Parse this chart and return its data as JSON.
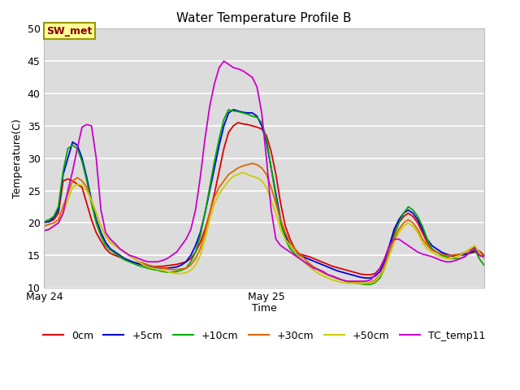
{
  "title": "Water Temperature Profile B",
  "xlabel": "Time",
  "ylabel": "Temperature(C)",
  "ylim": [
    10,
    50
  ],
  "yticks": [
    10,
    15,
    20,
    25,
    30,
    35,
    40,
    45,
    50
  ],
  "xtick_labels": [
    "May 24",
    "May 25"
  ],
  "background_color": "#dcdcdc",
  "annotation_text": "SW_met",
  "sw_met_box_color": "#ffff99",
  "sw_met_text_color": "#880000",
  "sw_met_border_color": "#999900",
  "series_order": [
    "0cm",
    "+5cm",
    "+10cm",
    "+30cm",
    "+50cm",
    "TC_temp11"
  ],
  "series": {
    "0cm": {
      "color": "#dd0000",
      "linewidth": 1.3,
      "values": [
        20.1,
        20.2,
        20.5,
        21.5,
        26.5,
        26.8,
        26.5,
        26.0,
        25.5,
        23.0,
        20.5,
        18.5,
        17.2,
        16.0,
        15.3,
        15.0,
        14.7,
        14.4,
        14.1,
        13.9,
        13.7,
        13.5,
        13.4,
        13.3,
        13.3,
        13.3,
        13.4,
        13.5,
        13.6,
        13.8,
        14.0,
        14.5,
        15.5,
        17.0,
        19.0,
        21.5,
        24.5,
        28.0,
        31.5,
        34.0,
        35.0,
        35.5,
        35.3,
        35.2,
        35.0,
        34.8,
        34.5,
        33.5,
        31.0,
        27.5,
        23.0,
        19.5,
        17.5,
        16.0,
        15.2,
        15.0,
        14.8,
        14.5,
        14.2,
        13.9,
        13.6,
        13.3,
        13.1,
        12.9,
        12.7,
        12.5,
        12.3,
        12.1,
        12.0,
        12.0,
        12.2,
        13.0,
        14.5,
        16.5,
        18.5,
        20.0,
        21.0,
        21.5,
        21.0,
        20.0,
        18.5,
        17.0,
        16.0,
        15.5,
        15.2,
        15.0,
        14.9,
        14.9,
        15.0,
        15.1,
        15.3,
        15.5,
        15.7,
        15.0
      ]
    },
    "+5cm": {
      "color": "#0000dd",
      "linewidth": 1.3,
      "values": [
        20.1,
        20.2,
        20.8,
        22.0,
        27.5,
        30.0,
        32.5,
        32.0,
        30.0,
        27.0,
        23.5,
        20.5,
        18.5,
        17.0,
        16.0,
        15.5,
        15.0,
        14.5,
        14.2,
        13.9,
        13.7,
        13.5,
        13.3,
        13.2,
        13.1,
        13.0,
        13.0,
        13.1,
        13.2,
        13.5,
        14.0,
        15.0,
        16.5,
        18.5,
        21.5,
        25.0,
        28.5,
        32.0,
        35.0,
        37.0,
        37.5,
        37.3,
        37.1,
        37.0,
        37.0,
        36.5,
        35.0,
        32.5,
        28.5,
        24.5,
        20.5,
        18.0,
        16.5,
        15.5,
        15.0,
        14.7,
        14.4,
        14.1,
        13.8,
        13.5,
        13.2,
        12.9,
        12.6,
        12.4,
        12.2,
        12.0,
        11.8,
        11.6,
        11.5,
        11.5,
        11.8,
        12.5,
        14.0,
        16.5,
        19.0,
        20.5,
        21.5,
        22.0,
        21.5,
        20.5,
        19.0,
        17.5,
        16.5,
        16.0,
        15.5,
        15.2,
        15.0,
        15.0,
        15.1,
        15.2,
        15.4,
        15.7,
        15.0,
        14.8
      ]
    },
    "+10cm": {
      "color": "#00aa00",
      "linewidth": 1.3,
      "values": [
        20.2,
        20.5,
        21.0,
        22.5,
        28.0,
        31.5,
        32.0,
        31.5,
        29.5,
        26.5,
        23.0,
        20.0,
        18.0,
        16.5,
        15.8,
        15.3,
        14.8,
        14.3,
        14.0,
        13.7,
        13.4,
        13.2,
        13.0,
        12.8,
        12.7,
        12.5,
        12.4,
        12.4,
        12.5,
        12.7,
        13.0,
        14.0,
        15.5,
        18.0,
        21.5,
        25.5,
        29.5,
        33.0,
        36.0,
        37.5,
        37.3,
        37.2,
        37.0,
        36.8,
        36.5,
        36.3,
        35.5,
        33.0,
        28.5,
        24.0,
        20.0,
        17.5,
        16.0,
        15.2,
        14.6,
        14.0,
        13.6,
        13.2,
        12.8,
        12.4,
        12.0,
        11.7,
        11.4,
        11.2,
        11.0,
        10.8,
        10.7,
        10.6,
        10.5,
        10.5,
        10.8,
        11.5,
        13.0,
        15.5,
        18.0,
        20.0,
        21.5,
        22.5,
        22.0,
        21.0,
        19.5,
        17.5,
        16.0,
        15.5,
        15.0,
        14.8,
        14.5,
        14.5,
        14.5,
        14.8,
        15.5,
        16.0,
        14.5,
        13.5
      ]
    },
    "+30cm": {
      "color": "#dd6600",
      "linewidth": 1.3,
      "values": [
        19.5,
        19.8,
        20.0,
        20.5,
        22.5,
        24.5,
        26.5,
        27.0,
        26.5,
        25.5,
        23.5,
        21.5,
        19.5,
        18.0,
        17.0,
        16.5,
        16.0,
        15.5,
        15.0,
        14.5,
        14.0,
        13.8,
        13.5,
        13.3,
        13.2,
        13.0,
        12.9,
        12.8,
        12.8,
        12.9,
        13.0,
        13.5,
        14.5,
        16.0,
        18.5,
        21.5,
        24.0,
        25.5,
        26.5,
        27.5,
        28.0,
        28.5,
        28.8,
        29.0,
        29.2,
        29.0,
        28.5,
        27.5,
        25.5,
        23.0,
        20.5,
        18.5,
        17.0,
        16.0,
        15.2,
        14.5,
        13.8,
        13.2,
        12.7,
        12.3,
        12.0,
        11.7,
        11.4,
        11.2,
        11.0,
        10.9,
        10.8,
        10.7,
        10.7,
        10.8,
        11.2,
        12.0,
        13.5,
        15.5,
        17.5,
        19.0,
        20.0,
        20.5,
        20.0,
        19.0,
        17.5,
        16.5,
        15.8,
        15.5,
        15.2,
        15.0,
        15.0,
        15.1,
        15.2,
        15.5,
        15.8,
        16.2,
        15.5,
        14.5
      ]
    },
    "+50cm": {
      "color": "#cccc00",
      "linewidth": 1.3,
      "values": [
        18.8,
        19.0,
        19.5,
        20.0,
        21.5,
        23.5,
        25.5,
        26.0,
        25.8,
        25.0,
        23.5,
        21.5,
        19.5,
        18.0,
        17.0,
        16.5,
        16.0,
        15.5,
        15.0,
        14.5,
        14.0,
        13.5,
        13.2,
        13.0,
        12.8,
        12.7,
        12.5,
        12.3,
        12.2,
        12.2,
        12.3,
        12.7,
        13.5,
        15.0,
        17.5,
        20.5,
        23.0,
        24.5,
        25.5,
        26.5,
        27.2,
        27.5,
        27.8,
        27.5,
        27.2,
        27.0,
        26.5,
        25.5,
        23.5,
        21.5,
        19.0,
        17.5,
        16.5,
        15.5,
        14.8,
        14.0,
        13.3,
        12.7,
        12.2,
        11.8,
        11.5,
        11.2,
        11.0,
        10.8,
        10.7,
        10.7,
        10.7,
        10.7,
        10.7,
        10.7,
        11.0,
        11.8,
        13.0,
        15.0,
        17.0,
        18.5,
        19.5,
        20.0,
        19.5,
        18.5,
        17.0,
        16.0,
        15.5,
        15.0,
        14.8,
        14.5,
        14.5,
        14.8,
        15.0,
        15.5,
        16.0,
        16.5,
        15.5,
        14.5
      ]
    },
    "TC_temp11": {
      "color": "#cc00cc",
      "linewidth": 1.3,
      "values": [
        18.8,
        19.0,
        19.5,
        20.0,
        21.5,
        25.0,
        28.0,
        31.5,
        34.8,
        35.2,
        35.0,
        30.0,
        22.0,
        18.5,
        17.5,
        16.8,
        16.0,
        15.5,
        15.0,
        14.8,
        14.5,
        14.2,
        14.0,
        14.0,
        14.0,
        14.2,
        14.5,
        15.0,
        15.5,
        16.5,
        17.5,
        19.0,
        22.0,
        27.0,
        33.0,
        38.0,
        41.5,
        44.0,
        45.0,
        44.5,
        44.0,
        43.8,
        43.5,
        43.0,
        42.5,
        41.0,
        37.0,
        30.0,
        22.0,
        17.5,
        16.5,
        16.0,
        15.5,
        15.0,
        14.5,
        14.0,
        13.5,
        13.0,
        12.8,
        12.5,
        12.0,
        11.8,
        11.5,
        11.2,
        11.0,
        11.0,
        11.0,
        11.0,
        11.0,
        11.2,
        12.0,
        13.0,
        14.5,
        16.5,
        17.5,
        17.5,
        17.0,
        16.5,
        16.0,
        15.5,
        15.2,
        15.0,
        14.8,
        14.5,
        14.2,
        14.0,
        14.0,
        14.2,
        14.5,
        14.8,
        15.5,
        16.2,
        15.0,
        14.8
      ]
    }
  },
  "legend_items": [
    {
      "label": "0cm",
      "color": "#dd0000"
    },
    {
      "label": "+5cm",
      "color": "#0000dd"
    },
    {
      "label": "+10cm",
      "color": "#00aa00"
    },
    {
      "label": "+30cm",
      "color": "#dd6600"
    },
    {
      "label": "+50cm",
      "color": "#cccc00"
    },
    {
      "label": "TC_temp11",
      "color": "#cc00cc"
    }
  ]
}
